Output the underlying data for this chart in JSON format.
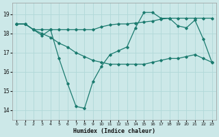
{
  "xlabel": "Humidex (Indice chaleur)",
  "bg_color": "#cce8e8",
  "grid_color": "#b0d8d8",
  "line_color": "#1a7a6e",
  "xlim": [
    -0.5,
    23.5
  ],
  "ylim": [
    13.5,
    19.6
  ],
  "yticks": [
    14,
    15,
    16,
    17,
    18,
    19
  ],
  "xticks": [
    0,
    1,
    2,
    3,
    4,
    5,
    6,
    7,
    8,
    9,
    10,
    11,
    12,
    13,
    14,
    15,
    16,
    17,
    18,
    19,
    20,
    21,
    22,
    23
  ],
  "line1_x": [
    0,
    1,
    2,
    3,
    4,
    5,
    6,
    7,
    8,
    9,
    10,
    11,
    12,
    13,
    14,
    15,
    16,
    17,
    18,
    19,
    20,
    21,
    22,
    23
  ],
  "line1_y": [
    18.5,
    18.5,
    18.2,
    17.9,
    18.2,
    16.7,
    15.4,
    14.2,
    14.1,
    15.5,
    16.3,
    16.9,
    17.1,
    17.3,
    18.3,
    19.1,
    19.1,
    18.8,
    18.8,
    18.4,
    18.3,
    18.7,
    17.7,
    16.5
  ],
  "line2_x": [
    0,
    1,
    2,
    3,
    4,
    5,
    6,
    7,
    8,
    9,
    10,
    11,
    12,
    13,
    14,
    15,
    16,
    17,
    18,
    19,
    20,
    21,
    22,
    23
  ],
  "line2_y": [
    18.5,
    18.5,
    18.2,
    18.2,
    18.2,
    18.2,
    18.2,
    18.2,
    18.2,
    18.2,
    18.35,
    18.45,
    18.5,
    18.5,
    18.55,
    18.6,
    18.65,
    18.75,
    18.8,
    18.8,
    18.8,
    18.8,
    18.8,
    18.8
  ],
  "line3_x": [
    0,
    1,
    2,
    3,
    4,
    5,
    6,
    7,
    8,
    9,
    10,
    11,
    12,
    13,
    14,
    15,
    16,
    17,
    18,
    19,
    20,
    21,
    22,
    23
  ],
  "line3_y": [
    18.5,
    18.5,
    18.2,
    18.0,
    17.8,
    17.5,
    17.3,
    17.0,
    16.8,
    16.6,
    16.5,
    16.4,
    16.4,
    16.4,
    16.4,
    16.4,
    16.5,
    16.6,
    16.7,
    16.7,
    16.8,
    16.9,
    16.7,
    16.5
  ]
}
